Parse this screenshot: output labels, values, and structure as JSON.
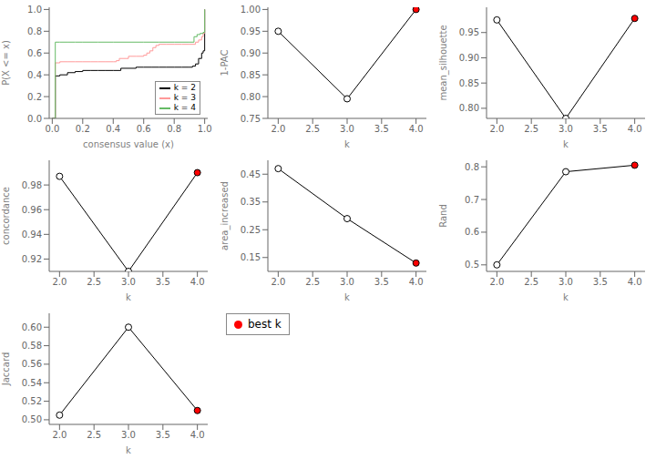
{
  "chart_data": [
    {
      "type": "step",
      "xlabel": "consensus value (x)",
      "ylabel": "P(X <= x)",
      "xlim": [
        -0.02,
        1.02
      ],
      "ylim": [
        0,
        1.02
      ],
      "xticks": [
        {
          "value": 0,
          "label": "0.0"
        },
        0.2,
        0.4,
        0.6,
        0.8,
        {
          "value": 1,
          "label": "1.0"
        }
      ],
      "yticks": [
        {
          "value": 0,
          "label": "0.0"
        },
        0.2,
        0.4,
        0.6,
        0.8,
        {
          "value": 1,
          "label": "1.0"
        }
      ],
      "legend": "lower right",
      "series": [
        {
          "name": "k = 2",
          "color": "#000000",
          "x": [
            0.0,
            0.01,
            0.02,
            0.05,
            0.1,
            0.15,
            0.2,
            0.25,
            0.3,
            0.35,
            0.4,
            0.45,
            0.5,
            0.55,
            0.6,
            0.65,
            0.7,
            0.75,
            0.8,
            0.85,
            0.9,
            0.92,
            0.94,
            0.96,
            0.98,
            0.99,
            1.0
          ],
          "values": [
            0.0,
            0.0,
            0.39,
            0.4,
            0.42,
            0.43,
            0.44,
            0.44,
            0.44,
            0.44,
            0.44,
            0.46,
            0.46,
            0.47,
            0.47,
            0.47,
            0.47,
            0.47,
            0.47,
            0.47,
            0.47,
            0.48,
            0.5,
            0.55,
            0.6,
            0.62,
            1.0
          ]
        },
        {
          "name": "k = 3",
          "color": "#FF9999",
          "x": [
            0.0,
            0.01,
            0.02,
            0.05,
            0.1,
            0.15,
            0.2,
            0.25,
            0.3,
            0.35,
            0.4,
            0.42,
            0.44,
            0.5,
            0.55,
            0.6,
            0.62,
            0.64,
            0.66,
            0.68,
            0.7,
            0.75,
            0.8,
            0.85,
            0.9,
            0.94,
            0.96,
            0.98,
            0.99,
            1.0
          ],
          "values": [
            0.0,
            0.0,
            0.51,
            0.52,
            0.52,
            0.52,
            0.52,
            0.52,
            0.52,
            0.52,
            0.52,
            0.53,
            0.55,
            0.57,
            0.57,
            0.58,
            0.6,
            0.62,
            0.65,
            0.67,
            0.68,
            0.68,
            0.68,
            0.68,
            0.68,
            0.7,
            0.72,
            0.75,
            0.78,
            1.0
          ]
        },
        {
          "name": "k = 4",
          "color": "#66BB66",
          "x": [
            0.0,
            0.01,
            0.02,
            0.05,
            0.1,
            0.15,
            0.2,
            0.3,
            0.4,
            0.5,
            0.6,
            0.7,
            0.8,
            0.9,
            0.93,
            0.95,
            0.97,
            0.99,
            1.0
          ],
          "values": [
            0.0,
            0.0,
            0.7,
            0.7,
            0.7,
            0.7,
            0.7,
            0.7,
            0.7,
            0.7,
            0.7,
            0.7,
            0.7,
            0.7,
            0.75,
            0.77,
            0.78,
            0.79,
            1.0
          ]
        }
      ]
    },
    {
      "type": "line",
      "xlabel": "k",
      "ylabel": "1-PAC",
      "x": [
        2,
        3,
        4
      ],
      "xlim": [
        1.85,
        4.15
      ],
      "xticks": [
        {
          "value": 2,
          "label": "2.0"
        },
        2.5,
        {
          "value": 3,
          "label": "3.0"
        },
        3.5,
        {
          "value": 4,
          "label": "4.0"
        }
      ],
      "ylim": [
        0.75,
        1.005
      ],
      "yticks": [
        0.75,
        {
          "value": 0.8,
          "label": "0.80"
        },
        0.85,
        {
          "value": 0.9,
          "label": "0.90"
        },
        0.95,
        {
          "value": 1.0,
          "label": "1.00"
        }
      ],
      "series": [
        {
          "color": "#000000",
          "marker": "circle",
          "colors": [
            "#FFFFFF",
            "#FFFFFF",
            "#FF0000"
          ],
          "values": [
            0.95,
            0.795,
            1.0
          ]
        }
      ]
    },
    {
      "type": "line",
      "xlabel": "k",
      "ylabel": "mean_silhouette",
      "x": [
        2,
        3,
        4
      ],
      "xlim": [
        1.85,
        4.15
      ],
      "xticks": [
        {
          "value": 2,
          "label": "2.0"
        },
        2.5,
        {
          "value": 3,
          "label": "3.0"
        },
        3.5,
        {
          "value": 4,
          "label": "4.0"
        }
      ],
      "ylim": [
        0.78,
        1.0
      ],
      "yticks": [
        {
          "value": 0.8,
          "label": "0.80"
        },
        0.85,
        {
          "value": 0.9,
          "label": "0.90"
        },
        0.95
      ],
      "series": [
        {
          "color": "#000000",
          "marker": "circle",
          "colors": [
            "#FFFFFF",
            "#FFFFFF",
            "#FF0000"
          ],
          "values": [
            0.975,
            0.78,
            0.978
          ]
        }
      ]
    },
    {
      "type": "line",
      "xlabel": "k",
      "ylabel": "concordance",
      "x": [
        2,
        3,
        4
      ],
      "xlim": [
        1.85,
        4.15
      ],
      "xticks": [
        {
          "value": 2,
          "label": "2.0"
        },
        2.5,
        {
          "value": 3,
          "label": "3.0"
        },
        3.5,
        {
          "value": 4,
          "label": "4.0"
        }
      ],
      "ylim": [
        0.91,
        1.0
      ],
      "yticks": [
        0.92,
        0.94,
        0.96,
        0.98
      ],
      "series": [
        {
          "color": "#000000",
          "marker": "circle",
          "colors": [
            "#FFFFFF",
            "#FFFFFF",
            "#FF0000"
          ],
          "values": [
            0.987,
            0.91,
            0.99
          ]
        }
      ]
    },
    {
      "type": "line",
      "xlabel": "k",
      "ylabel": "area_increased",
      "x": [
        2,
        3,
        4
      ],
      "xlim": [
        1.85,
        4.15
      ],
      "xticks": [
        {
          "value": 2,
          "label": "2.0"
        },
        2.5,
        {
          "value": 3,
          "label": "3.0"
        },
        3.5,
        {
          "value": 4,
          "label": "4.0"
        }
      ],
      "ylim": [
        0.1,
        0.5
      ],
      "yticks": [
        0.15,
        0.25,
        0.35,
        0.45
      ],
      "series": [
        {
          "color": "#000000",
          "marker": "circle",
          "colors": [
            "#FFFFFF",
            "#FFFFFF",
            "#FF0000"
          ],
          "values": [
            0.47,
            0.29,
            0.13
          ]
        }
      ]
    },
    {
      "type": "line",
      "xlabel": "k",
      "ylabel": "Rand",
      "x": [
        2,
        3,
        4
      ],
      "xlim": [
        1.85,
        4.15
      ],
      "xticks": [
        {
          "value": 2,
          "label": "2.0"
        },
        2.5,
        {
          "value": 3,
          "label": "3.0"
        },
        3.5,
        {
          "value": 4,
          "label": "4.0"
        }
      ],
      "ylim": [
        0.48,
        0.82
      ],
      "yticks": [
        0.5,
        0.6,
        0.7,
        0.8
      ],
      "series": [
        {
          "color": "#000000",
          "marker": "circle",
          "colors": [
            "#FFFFFF",
            "#FFFFFF",
            "#FF0000"
          ],
          "values": [
            0.5,
            0.785,
            0.805
          ]
        }
      ]
    },
    {
      "type": "line",
      "xlabel": "k",
      "ylabel": "Jaccard",
      "x": [
        2,
        3,
        4
      ],
      "xlim": [
        1.85,
        4.15
      ],
      "xticks": [
        {
          "value": 2,
          "label": "2.0"
        },
        2.5,
        {
          "value": 3,
          "label": "3.0"
        },
        3.5,
        {
          "value": 4,
          "label": "4.0"
        }
      ],
      "ylim": [
        0.495,
        0.615
      ],
      "yticks": [
        {
          "value": 0.5,
          "label": "0.50"
        },
        0.52,
        0.54,
        0.56,
        0.58,
        {
          "value": 0.6,
          "label": "0.60"
        }
      ],
      "series": [
        {
          "color": "#000000",
          "marker": "circle",
          "colors": [
            "#FFFFFF",
            "#FFFFFF",
            "#FF0000"
          ],
          "values": [
            0.505,
            0.6,
            0.51
          ]
        }
      ]
    },
    {
      "type": "legend",
      "legend": "upper left",
      "series": [
        {
          "name": "best k",
          "color": "#FF0000",
          "marker": "circle"
        }
      ]
    }
  ]
}
